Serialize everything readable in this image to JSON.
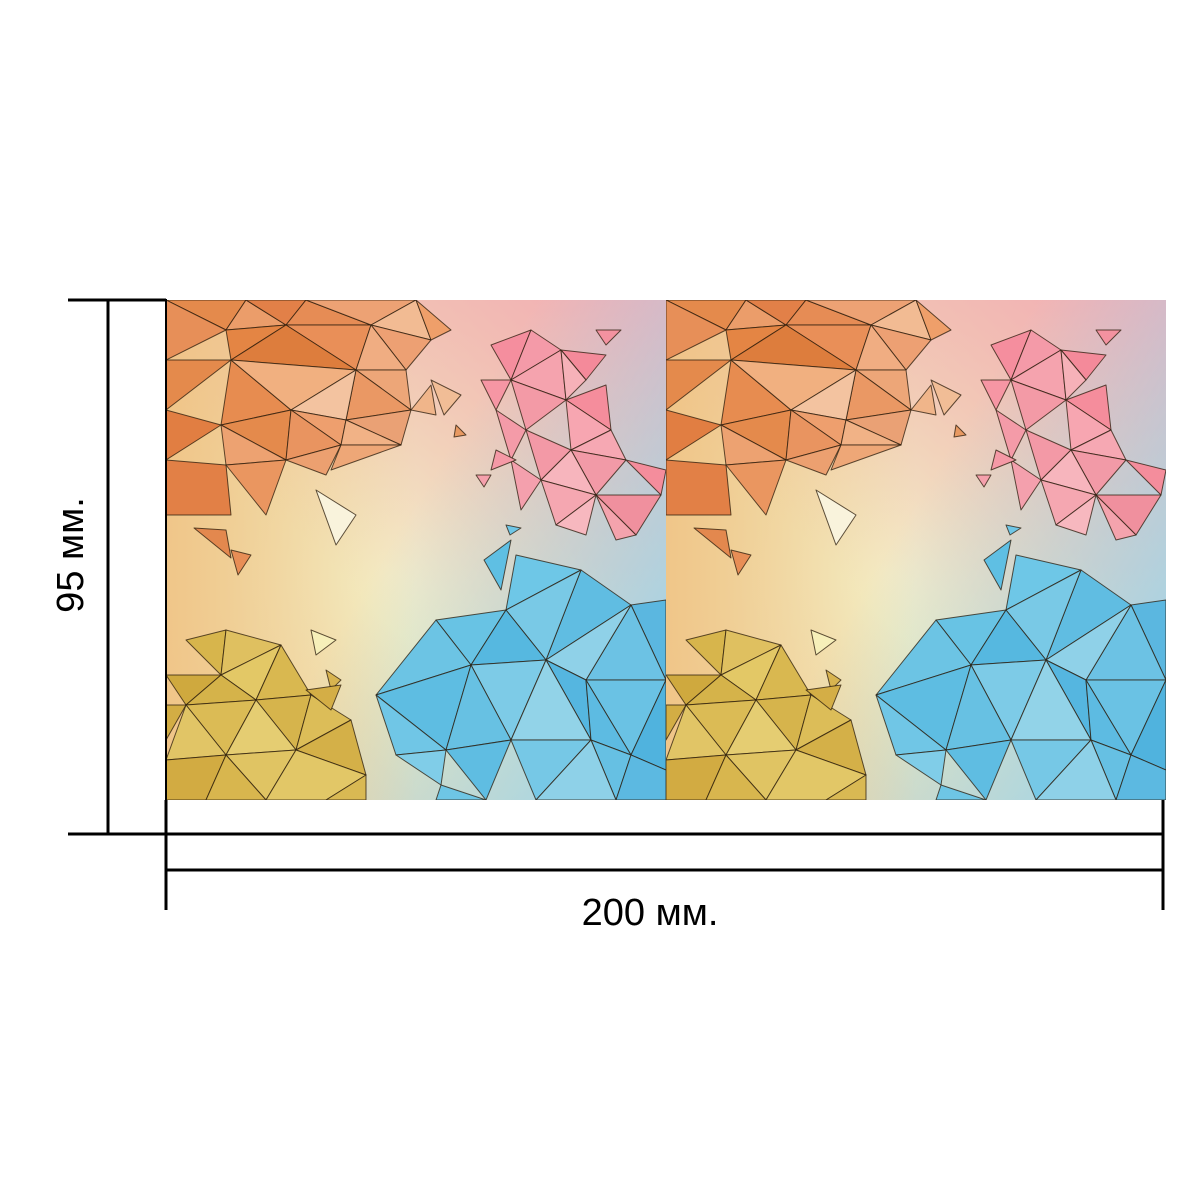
{
  "dimensions": {
    "height_label": "95 мм.",
    "width_label": "200 мм."
  },
  "colors": {
    "orange": "#e9915a",
    "pink": "#f59aa8",
    "blue": "#6cc4e4",
    "gold": "#d6b64e",
    "line": "#000000"
  },
  "tile": {
    "repeat_count": 2
  }
}
